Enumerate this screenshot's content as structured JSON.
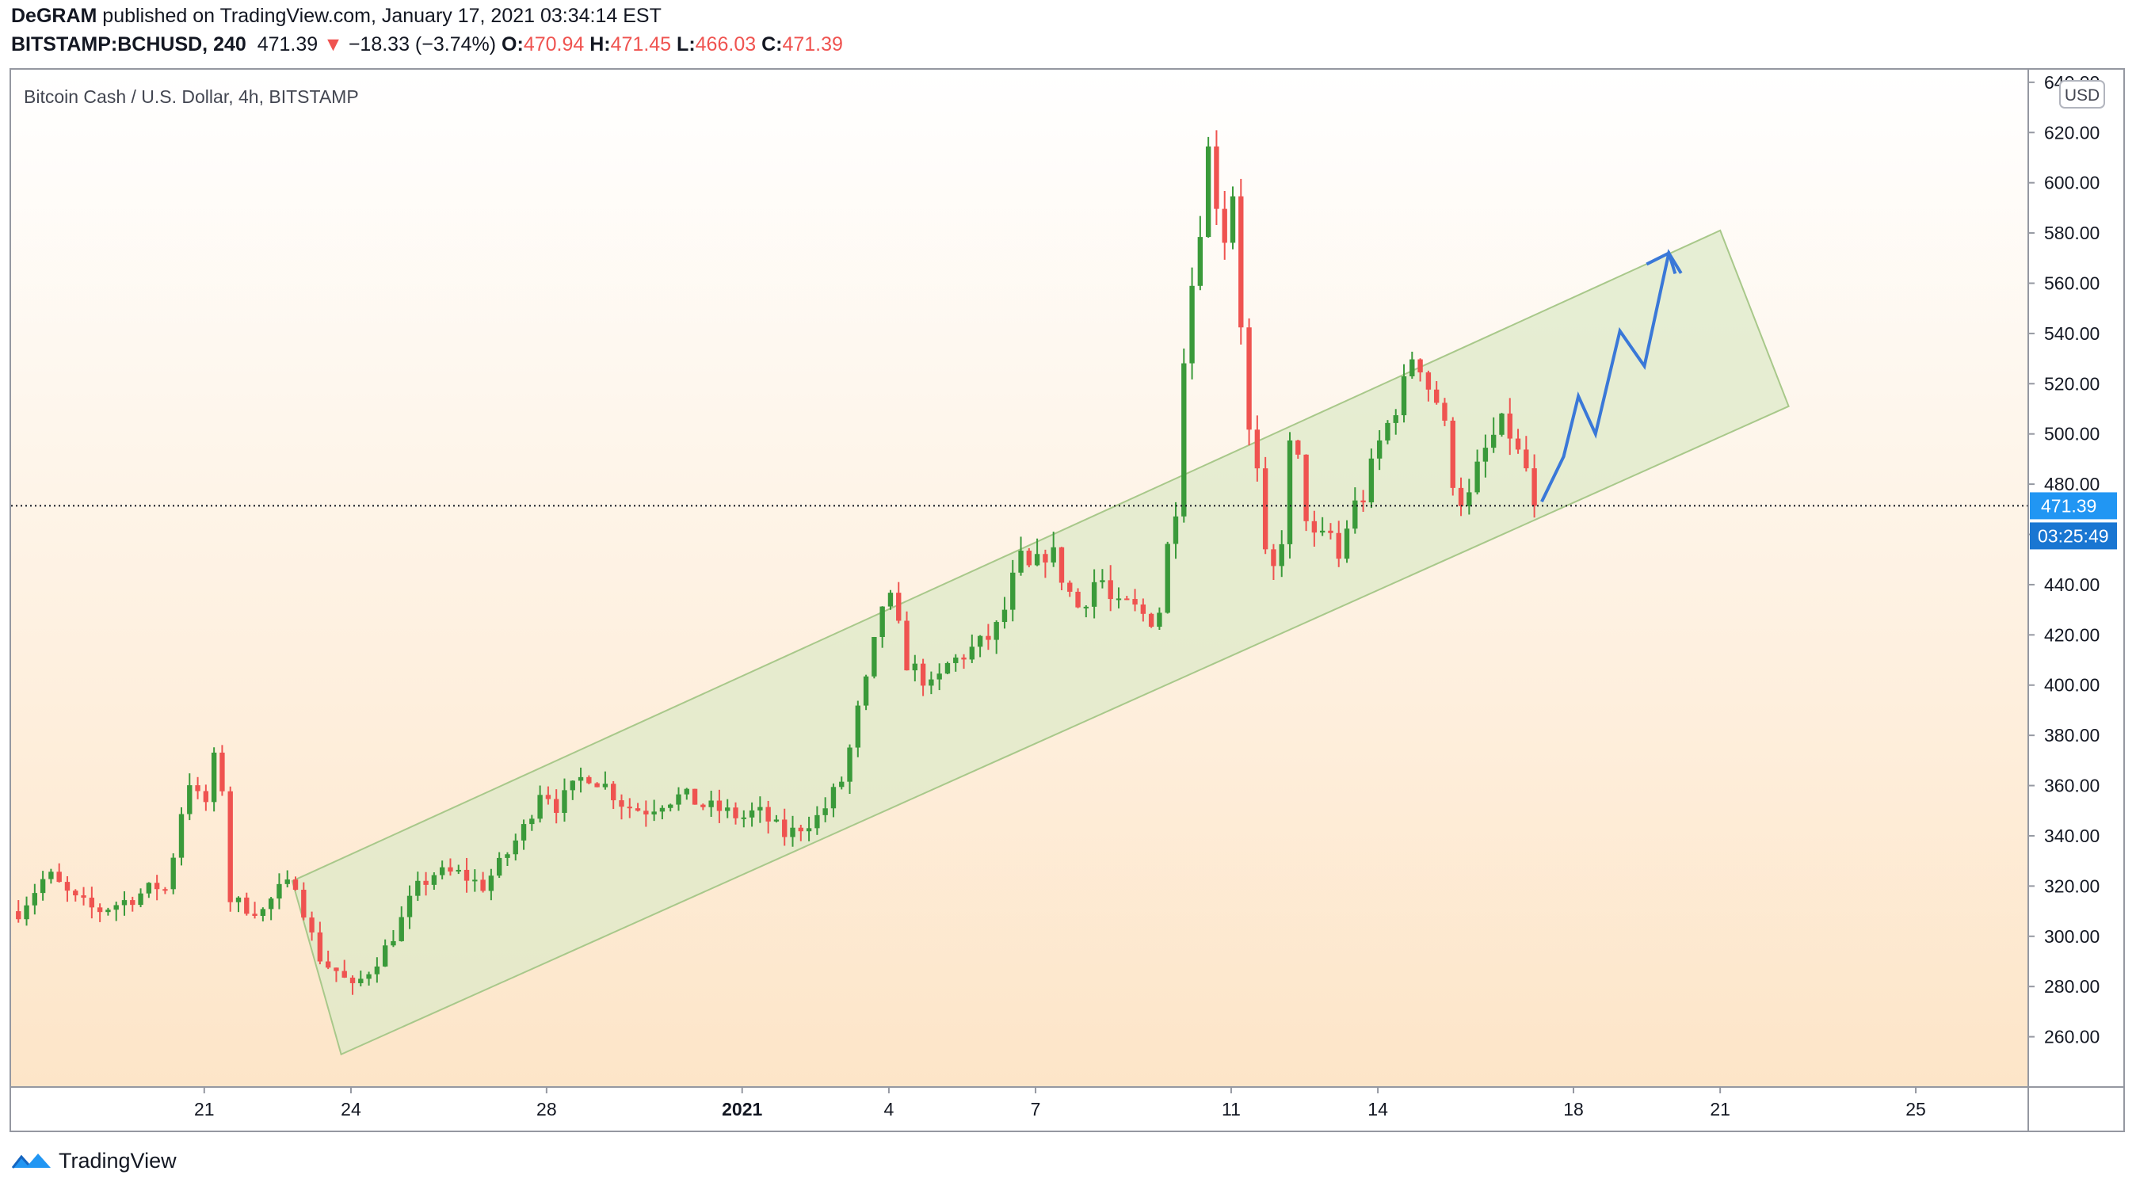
{
  "header": {
    "author": "DeGRAM",
    "published_text": "published on TradingView.com, January 17, 2021 03:34:14 EST",
    "symbol": "BITSTAMP:BCHUSD, 240",
    "last": "471.39",
    "change": "−18.33 (−3.74%)",
    "open_label": "O:",
    "open": "470.94",
    "high_label": "H:",
    "high": "471.45",
    "low_label": "L:",
    "low": "466.03",
    "close_label": "C:",
    "close": "471.39"
  },
  "footer": {
    "brand": "TradingView"
  },
  "colors": {
    "up": "#26a69a",
    "up_fill": "#3a9a3a",
    "down": "#ef5350",
    "bg_top": "#ffffff",
    "bg_bottom": "#fde5c8",
    "channel_fill": "#dde9c8",
    "channel_stroke": "#a8c88a",
    "forecast": "#3a78d8",
    "price_label": "#2196f3",
    "timer_label": "#1976d2"
  },
  "chart_data": {
    "type": "candlestick",
    "title": "Bitcoin Cash / U.S. Dollar, 4h, BITSTAMP",
    "currency_badge": "USD",
    "ylim": [
      240,
      645
    ],
    "ytick_values": [
      260,
      280,
      300,
      320,
      340,
      360,
      380,
      400,
      420,
      440,
      460,
      480,
      500,
      520,
      540,
      560,
      580,
      600,
      620,
      640
    ],
    "ytick_labels": [
      "260.00",
      "280.00",
      "300.00",
      "320.00",
      "340.00",
      "360.00",
      "380.00",
      "400.00",
      "420.00",
      "440.00",
      "460.00",
      "480.00",
      "500.00",
      "520.00",
      "540.00",
      "560.00",
      "580.00",
      "600.00",
      "620.00",
      "640.00"
    ],
    "x_unit": "days (4h bars, 6 per day)",
    "xlim_days": [
      -3.95,
      37.3
    ],
    "xticks": [
      {
        "day": 0,
        "label": "21",
        "bold": false
      },
      {
        "day": 3,
        "label": "24",
        "bold": false
      },
      {
        "day": 7,
        "label": "28",
        "bold": false
      },
      {
        "day": 11,
        "label": "2021",
        "bold": true
      },
      {
        "day": 14,
        "label": "4",
        "bold": false
      },
      {
        "day": 17,
        "label": "7",
        "bold": false
      },
      {
        "day": 21,
        "label": "11",
        "bold": false
      },
      {
        "day": 24,
        "label": "14",
        "bold": false
      },
      {
        "day": 28,
        "label": "18",
        "bold": false
      },
      {
        "day": 31,
        "label": "21",
        "bold": false
      },
      {
        "day": 35,
        "label": "25",
        "bold": false
      }
    ],
    "last_price": 471.39,
    "last_price_label": "471.39",
    "countdown_label": "03:25:49",
    "candle_keypoints": [
      [
        -3.8,
        310
      ],
      [
        -3.2,
        325
      ],
      [
        -2.7,
        315
      ],
      [
        -2.2,
        310
      ],
      [
        -1.5,
        315
      ],
      [
        -1.0,
        320
      ],
      [
        -0.7,
        318
      ],
      [
        -0.6,
        340
      ],
      [
        -0.3,
        362
      ],
      [
        0.0,
        350
      ],
      [
        0.2,
        370
      ],
      [
        0.35,
        365
      ],
      [
        0.5,
        315
      ],
      [
        0.8,
        312
      ],
      [
        1.2,
        310
      ],
      [
        1.5,
        318
      ],
      [
        1.9,
        322
      ],
      [
        2.1,
        305
      ],
      [
        2.4,
        290
      ],
      [
        2.8,
        285
      ],
      [
        3.0,
        278
      ],
      [
        3.3,
        285
      ],
      [
        3.7,
        295
      ],
      [
        4.0,
        305
      ],
      [
        4.3,
        318
      ],
      [
        4.7,
        325
      ],
      [
        5.2,
        325
      ],
      [
        5.7,
        320
      ],
      [
        6.1,
        330
      ],
      [
        6.6,
        345
      ],
      [
        6.9,
        360
      ],
      [
        7.2,
        352
      ],
      [
        7.5,
        358
      ],
      [
        7.8,
        365
      ],
      [
        8.2,
        360
      ],
      [
        8.6,
        352
      ],
      [
        9.0,
        350
      ],
      [
        9.4,
        354
      ],
      [
        9.8,
        356
      ],
      [
        10.2,
        352
      ],
      [
        10.6,
        350
      ],
      [
        11.0,
        347
      ],
      [
        11.3,
        350
      ],
      [
        11.6,
        345
      ],
      [
        11.9,
        340
      ],
      [
        12.3,
        345
      ],
      [
        12.6,
        348
      ],
      [
        12.9,
        358
      ],
      [
        13.1,
        364
      ],
      [
        13.3,
        385
      ],
      [
        13.6,
        405
      ],
      [
        13.85,
        432
      ],
      [
        14.1,
        434
      ],
      [
        14.3,
        410
      ],
      [
        14.6,
        405
      ],
      [
        14.9,
        398
      ],
      [
        15.2,
        408
      ],
      [
        15.6,
        413
      ],
      [
        16.0,
        418
      ],
      [
        16.3,
        425
      ],
      [
        16.5,
        440
      ],
      [
        16.7,
        450
      ],
      [
        16.9,
        445
      ],
      [
        17.3,
        455
      ],
      [
        17.6,
        440
      ],
      [
        17.9,
        430
      ],
      [
        18.3,
        445
      ],
      [
        18.6,
        430
      ],
      [
        18.9,
        432
      ],
      [
        19.2,
        428
      ],
      [
        19.5,
        425
      ],
      [
        19.7,
        455
      ],
      [
        19.9,
        475
      ],
      [
        20.05,
        540
      ],
      [
        20.2,
        560
      ],
      [
        20.35,
        580
      ],
      [
        20.5,
        615
      ],
      [
        20.65,
        605
      ],
      [
        20.8,
        570
      ],
      [
        20.95,
        590
      ],
      [
        21.05,
        598
      ],
      [
        21.2,
        545
      ],
      [
        21.3,
        505
      ],
      [
        21.5,
        490
      ],
      [
        21.75,
        440
      ],
      [
        22.0,
        452
      ],
      [
        22.25,
        505
      ],
      [
        22.5,
        470
      ],
      [
        22.75,
        455
      ],
      [
        23.0,
        462
      ],
      [
        23.2,
        450
      ],
      [
        23.45,
        470
      ],
      [
        23.7,
        475
      ],
      [
        24.0,
        495
      ],
      [
        24.3,
        508
      ],
      [
        24.55,
        520
      ],
      [
        24.75,
        535
      ],
      [
        25.0,
        520
      ],
      [
        25.3,
        510
      ],
      [
        25.55,
        480
      ],
      [
        25.8,
        470
      ],
      [
        26.1,
        490
      ],
      [
        26.4,
        500
      ],
      [
        26.6,
        505
      ],
      [
        26.9,
        490
      ],
      [
        27.1,
        484
      ],
      [
        27.25,
        471.39
      ]
    ],
    "channel": {
      "type": "parallel_channel",
      "upper_line": [
        [
          1.8,
          322
        ],
        [
          31.0,
          581
        ]
      ],
      "lower_line": [
        [
          2.8,
          253
        ],
        [
          32.4,
          511
        ]
      ]
    },
    "forecast_path": [
      [
        27.35,
        473
      ],
      [
        27.8,
        491
      ],
      [
        28.1,
        515
      ],
      [
        28.45,
        500
      ],
      [
        28.95,
        541
      ],
      [
        29.45,
        527
      ],
      [
        29.95,
        572
      ],
      [
        30.2,
        564
      ]
    ]
  }
}
